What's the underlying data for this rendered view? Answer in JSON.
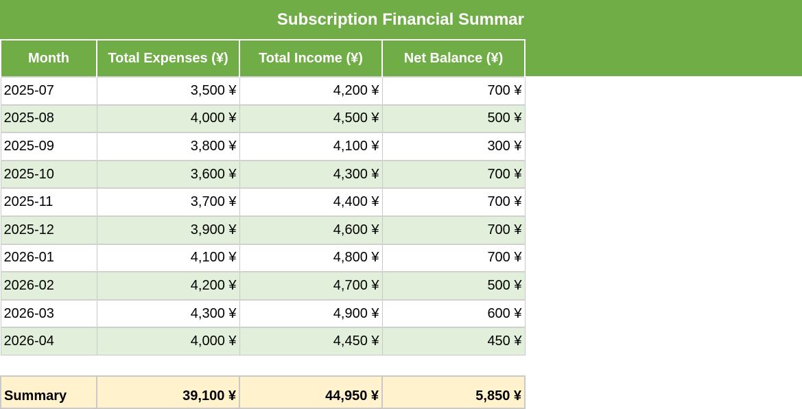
{
  "sheet": {
    "title": "Subscription Financial Summar",
    "columns": [
      "Month",
      "Total Expenses (¥)",
      "Total Income (¥)",
      "Net Balance (¥)"
    ],
    "rows": [
      {
        "month": "2025-07",
        "expenses": "3,500 ¥",
        "income": "4,200 ¥",
        "net": "700 ¥"
      },
      {
        "month": "2025-08",
        "expenses": "4,000 ¥",
        "income": "4,500 ¥",
        "net": "500 ¥"
      },
      {
        "month": "2025-09",
        "expenses": "3,800 ¥",
        "income": "4,100 ¥",
        "net": "300 ¥"
      },
      {
        "month": "2025-10",
        "expenses": "3,600 ¥",
        "income": "4,300 ¥",
        "net": "700 ¥"
      },
      {
        "month": "2025-11",
        "expenses": "3,700 ¥",
        "income": "4,400 ¥",
        "net": "700 ¥"
      },
      {
        "month": "2025-12",
        "expenses": "3,900 ¥",
        "income": "4,600 ¥",
        "net": "700 ¥"
      },
      {
        "month": "2026-01",
        "expenses": "4,100 ¥",
        "income": "4,800 ¥",
        "net": "700 ¥"
      },
      {
        "month": "2026-02",
        "expenses": "4,200 ¥",
        "income": "4,700 ¥",
        "net": "500 ¥"
      },
      {
        "month": "2026-03",
        "expenses": "4,300 ¥",
        "income": "4,900 ¥",
        "net": "600 ¥"
      },
      {
        "month": "2026-04",
        "expenses": "4,000 ¥",
        "income": "4,450 ¥",
        "net": "450 ¥"
      }
    ],
    "summary": {
      "label": "Summary",
      "expenses": "39,100 ¥",
      "income": "44,950 ¥",
      "net": "5,850 ¥"
    }
  },
  "colors": {
    "header_green": "#70ad47",
    "band_green": "#e2efda",
    "summary_yellow": "#fff2cc"
  }
}
